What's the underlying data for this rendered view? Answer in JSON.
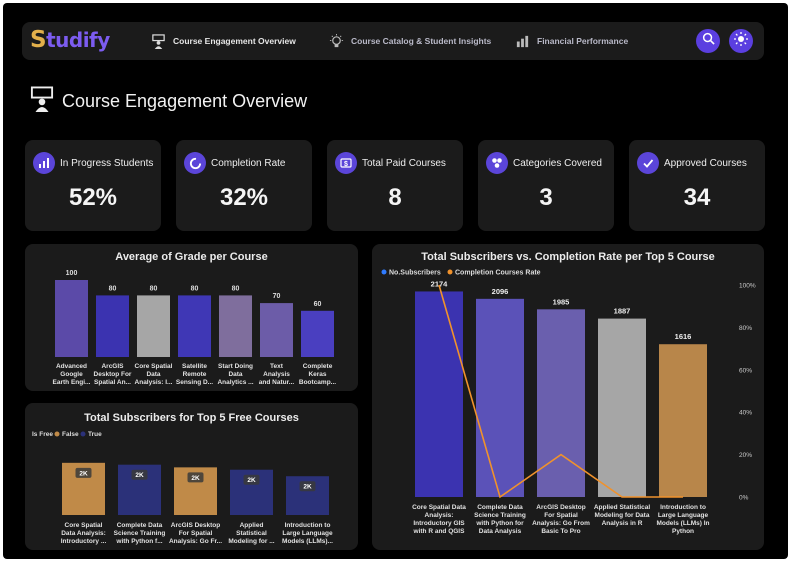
{
  "brand": {
    "initial": "S",
    "rest": "tudify"
  },
  "nav": {
    "items": [
      {
        "label": "Course Engagement Overview",
        "icon": "presenter-icon"
      },
      {
        "label": "Course Catalog & Student Insights",
        "icon": "lightbulb-icon"
      },
      {
        "label": "Financial Performance",
        "icon": "finance-icon"
      }
    ],
    "search_icon": "search-icon",
    "theme_icon": "sun-icon",
    "accent": "#5b3fe0"
  },
  "page": {
    "title": "Course Engagement Overview"
  },
  "kpis": [
    {
      "label": "In Progress Students",
      "value": "52%"
    },
    {
      "label": "Completion Rate",
      "value": "32%"
    },
    {
      "label": "Total Paid Courses",
      "value": "8"
    },
    {
      "label": "Categories Covered",
      "value": "3"
    },
    {
      "label": "Approved Courses",
      "value": "34"
    }
  ],
  "chart_data": [
    {
      "type": "bar",
      "title": "Average of Grade per Course",
      "categories": [
        [
          "Advanced",
          "Google",
          "Earth Engi..."
        ],
        [
          "ArcGIS",
          "Desktop For",
          "Spatial An..."
        ],
        [
          "Core Spatial",
          "Data",
          "Analysis: I..."
        ],
        [
          "Satellite",
          "Remote",
          "Sensing D..."
        ],
        [
          "Start Doing",
          "Data",
          "Analytics ..."
        ],
        [
          "Text",
          "Analysis",
          "and Natur..."
        ],
        [
          "Complete",
          "Keras",
          "Bootcamp..."
        ]
      ],
      "values": [
        100,
        80,
        80,
        80,
        80,
        70,
        60
      ],
      "colors": [
        "#5b4aa8",
        "#3b33b0",
        "#a6a6a6",
        "#3f37b5",
        "#7f6e9d",
        "#6c5ca8",
        "#4a3fc0"
      ],
      "ylim": [
        0,
        100
      ]
    },
    {
      "type": "bar",
      "title": "Total Subscribers for Top 5 Free Courses",
      "legend": {
        "title": "Is Free",
        "entries": [
          {
            "name": "False",
            "color": "#c08a48"
          },
          {
            "name": "True",
            "color": "#2b3179"
          }
        ]
      },
      "categories": [
        [
          "Core Spatial",
          "Data Analysis:",
          "Introductory ..."
        ],
        [
          "Complete Data",
          "Science Training",
          "with Python f..."
        ],
        [
          "ArcGIS Desktop",
          "For Spatial",
          "Analysis: Go Fr..."
        ],
        [
          "Applied",
          "Statistical",
          "Modeling for ..."
        ],
        [
          "Introduction to",
          "Large Language",
          "Models (LLMs)..."
        ]
      ],
      "values": [
        2174,
        2096,
        1985,
        1887,
        1616
      ],
      "labels": [
        "2K",
        "2K",
        "2K",
        "2K",
        "2K"
      ],
      "is_free": [
        false,
        true,
        false,
        true,
        true
      ],
      "ylim": [
        0,
        3000
      ]
    },
    {
      "type": "bar",
      "title": "Total Subscribers vs. Completion Rate per Top 5 Course",
      "legend": [
        {
          "name": "No.Subscribers",
          "color": "#2f7bff"
        },
        {
          "name": "Completion Courses Rate",
          "color": "#f0922c"
        }
      ],
      "categories": [
        [
          "Core Spatial Data",
          "Analysis:",
          "Introductory GIS",
          "with R and QGIS"
        ],
        [
          "Complete Data",
          "Science Training",
          "with Python for",
          "Data Analysis"
        ],
        [
          "ArcGIS Desktop",
          "For Spatial",
          "Analysis: Go From",
          "Basic To Pro"
        ],
        [
          "Applied Statistical",
          "Modeling for Data",
          "Analysis in R"
        ],
        [
          "Introduction to",
          "Large Language",
          "Models (LLMs) In",
          "Python"
        ]
      ],
      "series": [
        {
          "name": "No.Subscribers",
          "values": [
            2174,
            2096,
            1985,
            1887,
            1616
          ],
          "colors": [
            "#3b33b0",
            "#5b52b8",
            "#6a5fae",
            "#a6a6a6",
            "#b8864a"
          ]
        },
        {
          "name": "Completion Courses Rate",
          "values": [
            100,
            0,
            20,
            0,
            0
          ],
          "color": "#f0922c"
        }
      ],
      "ylim": [
        0,
        2200
      ],
      "y2_ticks": [
        "0%",
        "20%",
        "40%",
        "60%",
        "80%",
        "100%"
      ],
      "y2lim": [
        0,
        100
      ]
    }
  ]
}
